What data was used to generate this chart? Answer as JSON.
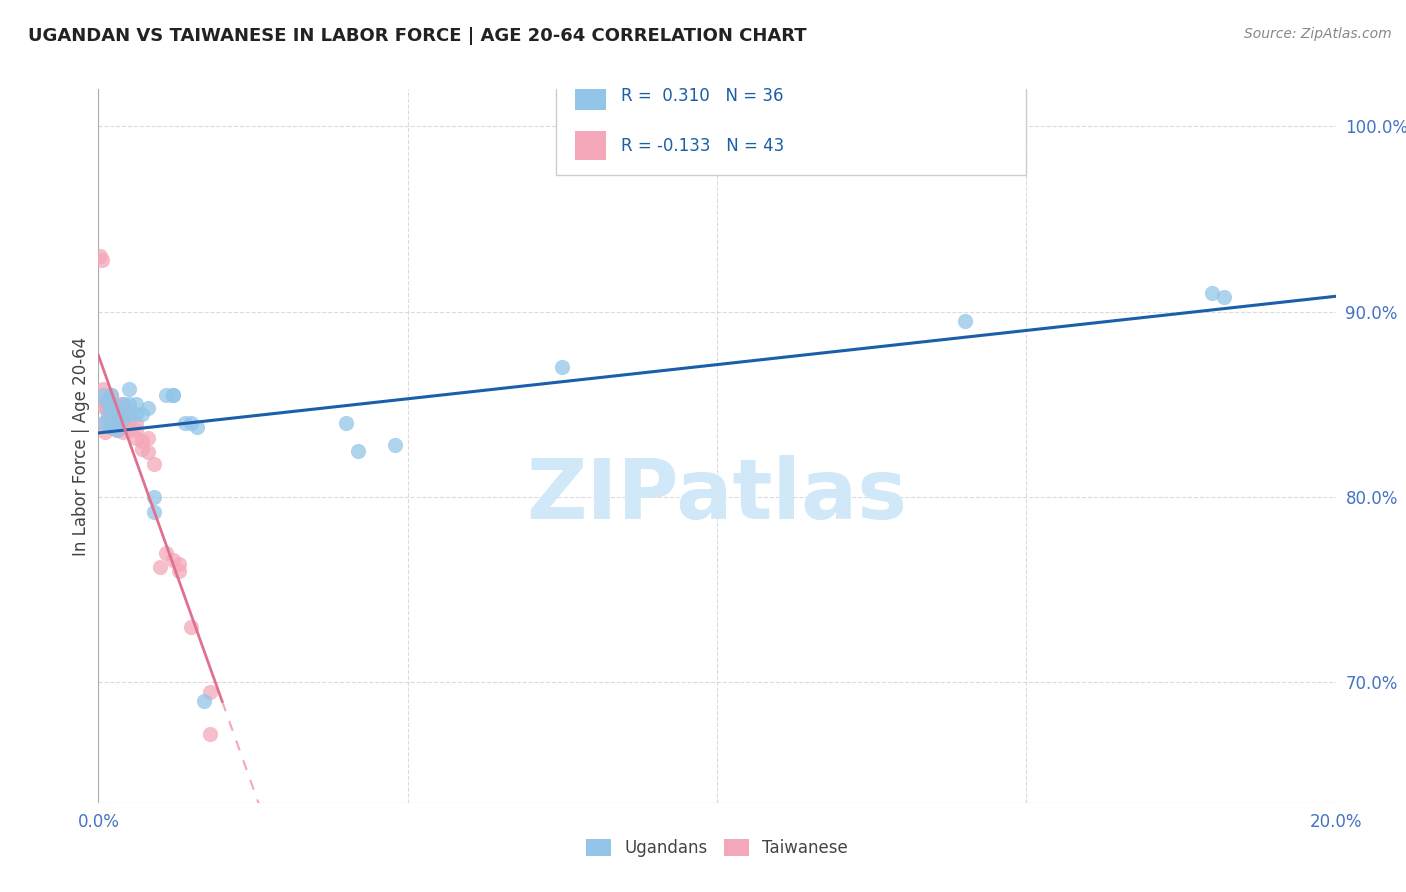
{
  "title": "UGANDAN VS TAIWANESE IN LABOR FORCE | AGE 20-64 CORRELATION CHART",
  "source": "Source: ZipAtlas.com",
  "ylabel_label": "In Labor Force | Age 20-64",
  "xlim": [
    0.0,
    0.2
  ],
  "ylim": [
    0.635,
    1.02
  ],
  "blue_color": "#92C5E8",
  "pink_color": "#F4A7B9",
  "line_blue": "#1A5FA8",
  "line_pink_solid": "#E07090",
  "line_pink_dash": "#F4A7B9",
  "watermark_color": "#D0E8F8",
  "legend_R_blue": "R =  0.310",
  "legend_N_blue": "N = 36",
  "legend_R_pink": "R = -0.133",
  "legend_N_pink": "N = 43",
  "ugandan_x": [
    0.0008,
    0.0008,
    0.0012,
    0.0015,
    0.0018,
    0.002,
    0.002,
    0.002,
    0.003,
    0.003,
    0.003,
    0.004,
    0.004,
    0.005,
    0.005,
    0.005,
    0.006,
    0.006,
    0.007,
    0.008,
    0.009,
    0.009,
    0.011,
    0.012,
    0.012,
    0.014,
    0.015,
    0.016,
    0.017,
    0.04,
    0.042,
    0.048,
    0.075,
    0.14,
    0.18,
    0.182
  ],
  "ugandan_y": [
    0.855,
    0.84,
    0.852,
    0.845,
    0.838,
    0.855,
    0.848,
    0.84,
    0.848,
    0.842,
    0.836,
    0.85,
    0.842,
    0.858,
    0.85,
    0.845,
    0.85,
    0.845,
    0.845,
    0.848,
    0.8,
    0.792,
    0.855,
    0.855,
    0.855,
    0.84,
    0.84,
    0.838,
    0.69,
    0.84,
    0.825,
    0.828,
    0.87,
    0.895,
    0.91,
    0.908
  ],
  "taiwanese_x": [
    0.0003,
    0.0005,
    0.0008,
    0.001,
    0.001,
    0.001,
    0.001,
    0.0012,
    0.0014,
    0.0015,
    0.0015,
    0.002,
    0.002,
    0.002,
    0.002,
    0.0025,
    0.003,
    0.003,
    0.003,
    0.003,
    0.004,
    0.004,
    0.004,
    0.004,
    0.005,
    0.005,
    0.005,
    0.006,
    0.006,
    0.006,
    0.007,
    0.007,
    0.008,
    0.008,
    0.009,
    0.01,
    0.011,
    0.012,
    0.013,
    0.013,
    0.015,
    0.018,
    0.018
  ],
  "taiwanese_y": [
    0.93,
    0.928,
    0.858,
    0.852,
    0.848,
    0.84,
    0.835,
    0.848,
    0.85,
    0.848,
    0.842,
    0.855,
    0.848,
    0.842,
    0.838,
    0.84,
    0.85,
    0.845,
    0.84,
    0.836,
    0.85,
    0.845,
    0.84,
    0.835,
    0.845,
    0.84,
    0.836,
    0.84,
    0.836,
    0.832,
    0.83,
    0.826,
    0.832,
    0.824,
    0.818,
    0.762,
    0.77,
    0.766,
    0.764,
    0.76,
    0.73,
    0.672,
    0.695
  ],
  "background_color": "#FFFFFF",
  "grid_color": "#CCCCCC"
}
